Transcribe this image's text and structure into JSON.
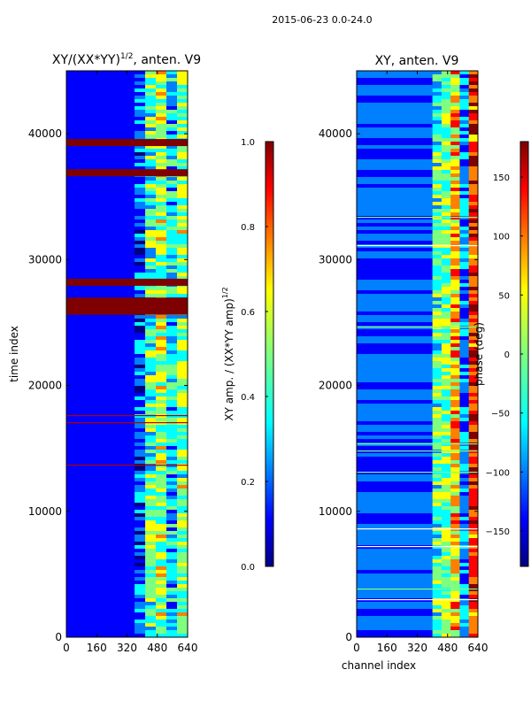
{
  "suptitle": "2015-06-23 0.0-24.0",
  "chart_data": [
    {
      "type": "heatmap",
      "title_main": "XY/(XX*YY)",
      "title_sup": "1/2",
      "title_rest": ", anten. V9",
      "xlabel": "",
      "ylabel": "time index",
      "xlim": [
        0,
        640
      ],
      "ylim": [
        0,
        45000
      ],
      "xticks": [
        0,
        160,
        320,
        480,
        640
      ],
      "yticks": [
        0,
        10000,
        20000,
        30000,
        40000
      ],
      "colorbar": {
        "label_main": "XY amp. / (XX*YY amp)",
        "label_sup": "1/2",
        "range": [
          0.0,
          1.0
        ],
        "ticks": [
          "0.0",
          "0.2",
          "0.4",
          "0.6",
          "0.8",
          "1.0"
        ],
        "tick_values": [
          0.0,
          0.2,
          0.4,
          0.6,
          0.8,
          1.0
        ]
      },
      "colormap": [
        "#00007f",
        "#0000ff",
        "#007fff",
        "#00ffff",
        "#7fff7f",
        "#ffff00",
        "#ff7f00",
        "#ff0000",
        "#7f0000"
      ],
      "saturated_rows_time_index": [
        39300,
        36900,
        28200,
        26700,
        26300,
        25900
      ],
      "active_channel_band": [
        360,
        640
      ]
    },
    {
      "type": "heatmap",
      "title": "XY, anten. V9",
      "xlabel": "channel index",
      "ylabel": "",
      "xlim": [
        0,
        640
      ],
      "ylim": [
        0,
        45000
      ],
      "xticks": [
        0,
        160,
        320,
        480,
        640
      ],
      "yticks": [
        0,
        10000,
        20000,
        30000,
        40000
      ],
      "colorbar": {
        "label": "phase (deg)",
        "range": [
          -180,
          180
        ],
        "ticks": [
          "−150",
          "−100",
          "−50",
          "0",
          "50",
          "100",
          "150"
        ],
        "tick_values": [
          -150,
          -100,
          -50,
          0,
          50,
          100,
          150
        ]
      },
      "colormap": [
        "#00007f",
        "#0000ff",
        "#007fff",
        "#00ffff",
        "#7fff7f",
        "#ffff00",
        "#ff7f00",
        "#ff0000",
        "#7f0000"
      ],
      "active_channel_band": [
        400,
        640
      ]
    }
  ]
}
